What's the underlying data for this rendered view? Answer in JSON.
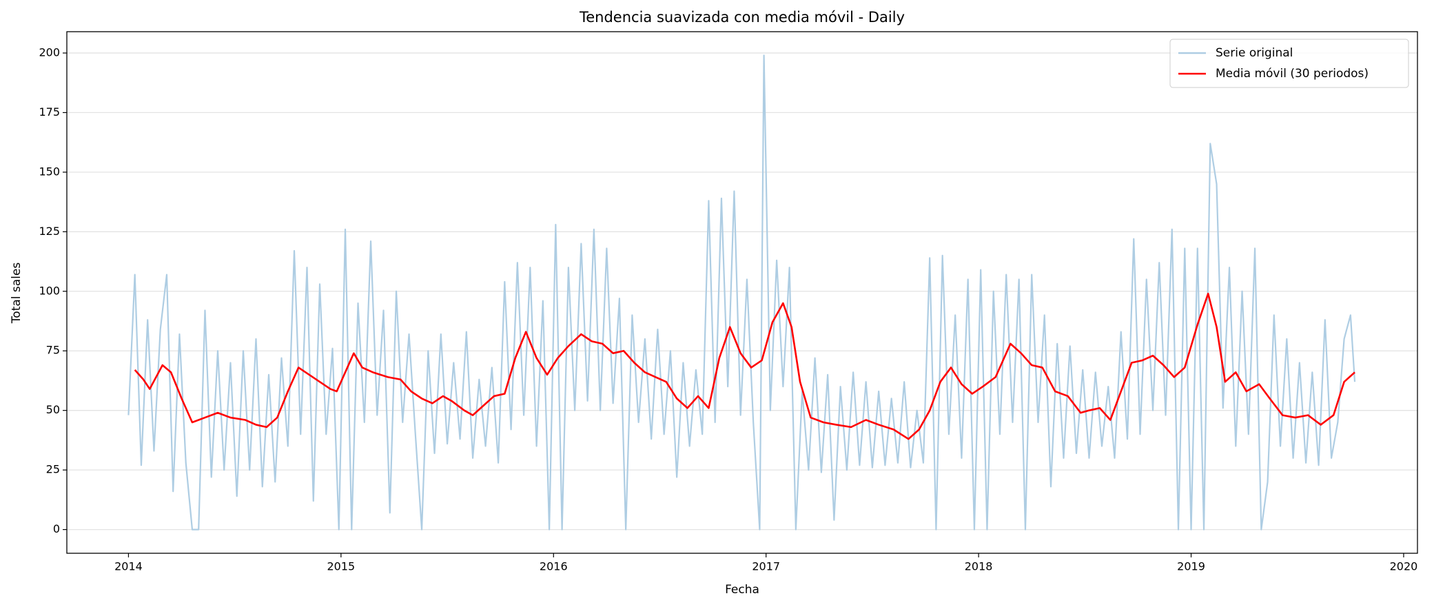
{
  "chart_data": {
    "type": "line",
    "title": "Tendencia suavizada con media móvil - Daily",
    "xlabel": "Fecha",
    "ylabel": "Total sales",
    "xlim": [
      2013.71,
      2020.065
    ],
    "xticks": [
      2014,
      2015,
      2016,
      2017,
      2018,
      2019,
      2020
    ],
    "ylim": [
      -9.95,
      208.95
    ],
    "yticks": [
      0,
      25,
      50,
      75,
      100,
      125,
      150,
      175,
      200
    ],
    "grid": "y",
    "legend": "upper right",
    "series": [
      {
        "name": "Serie original",
        "color": "#aecde3",
        "x": [
          2014.0,
          2014.03,
          2014.06,
          2014.09,
          2014.12,
          2014.15,
          2014.18,
          2014.21,
          2014.24,
          2014.27,
          2014.3,
          2014.33,
          2014.36,
          2014.39,
          2014.42,
          2014.45,
          2014.48,
          2014.51,
          2014.54,
          2014.57,
          2014.6,
          2014.63,
          2014.66,
          2014.69,
          2014.72,
          2014.75,
          2014.78,
          2014.81,
          2014.84,
          2014.87,
          2014.9,
          2014.93,
          2014.96,
          2014.99,
          2015.02,
          2015.05,
          2015.08,
          2015.11,
          2015.14,
          2015.17,
          2015.2,
          2015.23,
          2015.26,
          2015.29,
          2015.32,
          2015.35,
          2015.38,
          2015.41,
          2015.44,
          2015.47,
          2015.5,
          2015.53,
          2015.56,
          2015.59,
          2015.62,
          2015.65,
          2015.68,
          2015.71,
          2015.74,
          2015.77,
          2015.8,
          2015.83,
          2015.86,
          2015.89,
          2015.92,
          2015.95,
          2015.98,
          2016.01,
          2016.04,
          2016.07,
          2016.1,
          2016.13,
          2016.16,
          2016.19,
          2016.22,
          2016.25,
          2016.28,
          2016.31,
          2016.34,
          2016.37,
          2016.4,
          2016.43,
          2016.46,
          2016.49,
          2016.52,
          2016.55,
          2016.58,
          2016.61,
          2016.64,
          2016.67,
          2016.7,
          2016.73,
          2016.76,
          2016.79,
          2016.82,
          2016.85,
          2016.88,
          2016.91,
          2016.94,
          2016.97,
          2016.99,
          2017.02,
          2017.05,
          2017.08,
          2017.11,
          2017.14,
          2017.17,
          2017.2,
          2017.23,
          2017.26,
          2017.29,
          2017.32,
          2017.35,
          2017.38,
          2017.41,
          2017.44,
          2017.47,
          2017.5,
          2017.53,
          2017.56,
          2017.59,
          2017.62,
          2017.65,
          2017.68,
          2017.71,
          2017.74,
          2017.77,
          2017.8,
          2017.83,
          2017.86,
          2017.89,
          2017.92,
          2017.95,
          2017.98,
          2018.01,
          2018.04,
          2018.07,
          2018.1,
          2018.13,
          2018.16,
          2018.19,
          2018.22,
          2018.25,
          2018.28,
          2018.31,
          2018.34,
          2018.37,
          2018.4,
          2018.43,
          2018.46,
          2018.49,
          2018.52,
          2018.55,
          2018.58,
          2018.61,
          2018.64,
          2018.67,
          2018.7,
          2018.73,
          2018.76,
          2018.79,
          2018.82,
          2018.85,
          2018.88,
          2018.91,
          2018.94,
          2018.97,
          2019.0,
          2019.03,
          2019.06,
          2019.09,
          2019.12,
          2019.15,
          2019.18,
          2019.21,
          2019.24,
          2019.27,
          2019.3,
          2019.33,
          2019.36,
          2019.39,
          2019.42,
          2019.45,
          2019.48,
          2019.51,
          2019.54,
          2019.57,
          2019.6,
          2019.63,
          2019.66,
          2019.69,
          2019.72,
          2019.75,
          2019.77
        ],
        "values": [
          48,
          107,
          27,
          88,
          33,
          84,
          107,
          16,
          82,
          28,
          0,
          0,
          92,
          22,
          75,
          25,
          70,
          14,
          75,
          25,
          80,
          18,
          65,
          20,
          72,
          35,
          117,
          40,
          110,
          12,
          103,
          40,
          76,
          0,
          126,
          0,
          95,
          45,
          121,
          48,
          92,
          7,
          100,
          45,
          82,
          40,
          0,
          75,
          32,
          82,
          36,
          70,
          38,
          83,
          30,
          63,
          35,
          68,
          28,
          104,
          42,
          112,
          48,
          110,
          35,
          96,
          0,
          128,
          0,
          110,
          50,
          120,
          54,
          126,
          50,
          118,
          53,
          97,
          0,
          90,
          45,
          80,
          38,
          84,
          40,
          75,
          22,
          70,
          35,
          67,
          40,
          138,
          45,
          139,
          60,
          142,
          48,
          105,
          45,
          0,
          199,
          50,
          113,
          60,
          110,
          0,
          58,
          25,
          72,
          24,
          65,
          4,
          60,
          25,
          66,
          27,
          62,
          26,
          58,
          27,
          55,
          28,
          62,
          26,
          50,
          28,
          114,
          0,
          115,
          40,
          90,
          30,
          105,
          0,
          109,
          0,
          100,
          40,
          107,
          45,
          105,
          0,
          107,
          45,
          90,
          18,
          78,
          30,
          77,
          32,
          67,
          30,
          66,
          35,
          60,
          30,
          83,
          38,
          122,
          40,
          105,
          50,
          112,
          48,
          126,
          0,
          118,
          0,
          118,
          0,
          162,
          145,
          51,
          110,
          35,
          100,
          40,
          118,
          0,
          20,
          90,
          35,
          80,
          30,
          70,
          28,
          66,
          27,
          88,
          30,
          45,
          80,
          90,
          62
        ]
      },
      {
        "name": "Media móvil (30 periodos)",
        "color": "#ff0000",
        "x": [
          2014.03,
          2014.07,
          2014.1,
          2014.16,
          2014.2,
          2014.25,
          2014.3,
          2014.36,
          2014.42,
          2014.48,
          2014.55,
          2014.6,
          2014.65,
          2014.7,
          2014.75,
          2014.8,
          2014.85,
          2014.9,
          2014.95,
          2014.98,
          2015.03,
          2015.06,
          2015.1,
          2015.15,
          2015.22,
          2015.28,
          2015.33,
          2015.38,
          2015.43,
          2015.48,
          2015.52,
          2015.58,
          2015.62,
          2015.67,
          2015.72,
          2015.77,
          2015.82,
          2015.87,
          2015.92,
          2015.97,
          2016.02,
          2016.07,
          2016.13,
          2016.18,
          2016.23,
          2016.28,
          2016.33,
          2016.38,
          2016.43,
          2016.48,
          2016.53,
          2016.58,
          2016.63,
          2016.68,
          2016.73,
          2016.78,
          2016.83,
          2016.88,
          2016.93,
          2016.98,
          2017.03,
          2017.08,
          2017.12,
          2017.16,
          2017.21,
          2017.27,
          2017.33,
          2017.4,
          2017.47,
          2017.53,
          2017.6,
          2017.67,
          2017.72,
          2017.77,
          2017.82,
          2017.87,
          2017.92,
          2017.97,
          2018.02,
          2018.08,
          2018.15,
          2018.2,
          2018.25,
          2018.3,
          2018.36,
          2018.42,
          2018.48,
          2018.52,
          2018.57,
          2018.62,
          2018.67,
          2018.72,
          2018.77,
          2018.82,
          2018.87,
          2018.92,
          2018.97,
          2019.03,
          2019.08,
          2019.12,
          2019.16,
          2019.21,
          2019.26,
          2019.32,
          2019.37,
          2019.43,
          2019.49,
          2019.55,
          2019.61,
          2019.67,
          2019.72,
          2019.77
        ],
        "values": [
          67,
          63,
          59,
          69,
          66,
          55,
          45,
          47,
          49,
          47,
          46,
          44,
          43,
          47,
          58,
          68,
          65,
          62,
          59,
          58,
          68,
          74,
          68,
          66,
          64,
          63,
          58,
          55,
          53,
          56,
          54,
          50,
          48,
          52,
          56,
          57,
          72,
          83,
          72,
          65,
          72,
          77,
          82,
          79,
          78,
          74,
          75,
          70,
          66,
          64,
          62,
          55,
          51,
          56,
          51,
          72,
          85,
          74,
          68,
          71,
          87,
          95,
          85,
          62,
          47,
          45,
          44,
          43,
          46,
          44,
          42,
          38,
          42,
          50,
          62,
          68,
          61,
          57,
          60,
          64,
          78,
          74,
          69,
          68,
          58,
          56,
          49,
          50,
          51,
          46,
          58,
          70,
          71,
          73,
          69,
          64,
          68,
          86,
          99,
          85,
          62,
          66,
          58,
          61,
          55,
          48,
          47,
          48,
          44,
          48,
          62,
          66
        ]
      }
    ]
  }
}
